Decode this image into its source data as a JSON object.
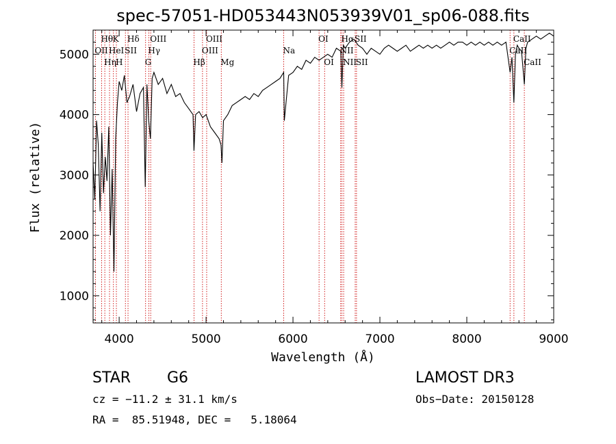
{
  "chart_data": {
    "type": "line",
    "title": "spec-57051-HD053443N053939V01_sp06-088.fits",
    "xlabel": "Wavelength (Å)",
    "ylabel": "Flux (relative)",
    "xlim": [
      3700,
      9000
    ],
    "ylim": [
      550,
      5400
    ],
    "xticks": [
      4000,
      5000,
      6000,
      7000,
      8000,
      9000
    ],
    "yticks": [
      1000,
      2000,
      3000,
      4000,
      5000
    ],
    "grid": false,
    "series": [
      {
        "name": "flux",
        "x": [
          3700,
          3720,
          3740,
          3760,
          3780,
          3800,
          3820,
          3840,
          3860,
          3880,
          3900,
          3920,
          3940,
          3960,
          3980,
          4000,
          4030,
          4060,
          4090,
          4120,
          4160,
          4200,
          4240,
          4280,
          4300,
          4320,
          4340,
          4360,
          4380,
          4400,
          4450,
          4500,
          4550,
          4600,
          4650,
          4700,
          4750,
          4800,
          4850,
          4861,
          4880,
          4920,
          4960,
          5000,
          5050,
          5100,
          5150,
          5172,
          5183,
          5200,
          5250,
          5300,
          5350,
          5400,
          5450,
          5500,
          5550,
          5600,
          5650,
          5700,
          5750,
          5800,
          5850,
          5893,
          5900,
          5950,
          6000,
          6050,
          6100,
          6150,
          6200,
          6250,
          6300,
          6350,
          6400,
          6450,
          6500,
          6550,
          6563,
          6580,
          6600,
          6650,
          6700,
          6750,
          6800,
          6850,
          6900,
          6950,
          7000,
          7050,
          7100,
          7150,
          7200,
          7250,
          7300,
          7350,
          7400,
          7450,
          7500,
          7550,
          7600,
          7650,
          7700,
          7750,
          7800,
          7850,
          7900,
          7950,
          8000,
          8050,
          8100,
          8150,
          8200,
          8250,
          8300,
          8350,
          8400,
          8450,
          8498,
          8520,
          8542,
          8560,
          8580,
          8600,
          8630,
          8662,
          8680,
          8700,
          8750,
          8800,
          8850,
          8900,
          8950,
          9000
        ],
        "values": [
          3200,
          2600,
          3900,
          3500,
          2400,
          3700,
          2700,
          3300,
          2900,
          3800,
          2000,
          3100,
          1400,
          3600,
          4200,
          4550,
          4400,
          4650,
          4200,
          4300,
          4500,
          4050,
          4350,
          4450,
          2800,
          4500,
          3900,
          3600,
          4600,
          4700,
          4500,
          4600,
          4350,
          4500,
          4300,
          4350,
          4200,
          4100,
          4000,
          3400,
          4000,
          4050,
          3950,
          4000,
          3800,
          3700,
          3600,
          3500,
          3200,
          3900,
          4000,
          4150,
          4200,
          4250,
          4300,
          4250,
          4350,
          4300,
          4400,
          4450,
          4500,
          4550,
          4600,
          4700,
          3900,
          4650,
          4700,
          4800,
          4750,
          4900,
          4850,
          4950,
          4900,
          4950,
          5000,
          4950,
          5100,
          5050,
          4450,
          5150,
          5100,
          5200,
          5250,
          5150,
          5100,
          5000,
          5100,
          5050,
          5000,
          5100,
          5150,
          5100,
          5050,
          5100,
          5150,
          5050,
          5100,
          5150,
          5100,
          5150,
          5100,
          5150,
          5100,
          5150,
          5200,
          5150,
          5200,
          5200,
          5150,
          5200,
          5150,
          5200,
          5150,
          5200,
          5150,
          5200,
          5150,
          5200,
          4700,
          4950,
          4200,
          5000,
          5150,
          5100,
          5050,
          4500,
          5100,
          5200,
          5250,
          5300,
          5250,
          5300,
          5350,
          5300
        ]
      }
    ],
    "spectral_lines": [
      {
        "name": "OII",
        "wavelength": 3727,
        "row": 1
      },
      {
        "name": "Hθ",
        "wavelength": 3798,
        "row": 0
      },
      {
        "name": "Hη",
        "wavelength": 3835,
        "row": 2
      },
      {
        "name": "HeI",
        "wavelength": 3889,
        "row": 1
      },
      {
        "name": "K",
        "wavelength": 3934,
        "row": 0
      },
      {
        "name": "H",
        "wavelength": 3968,
        "row": 2
      },
      {
        "name": "SII",
        "wavelength": 4072,
        "row": 1
      },
      {
        "name": "Hδ",
        "wavelength": 4102,
        "row": 0
      },
      {
        "name": "G",
        "wavelength": 4304,
        "row": 2
      },
      {
        "name": "Hγ",
        "wavelength": 4341,
        "row": 1
      },
      {
        "name": "OIII",
        "wavelength": 4363,
        "row": 0
      },
      {
        "name": "Hβ",
        "wavelength": 4861,
        "row": 2
      },
      {
        "name": "OIII",
        "wavelength": 4959,
        "row": 1
      },
      {
        "name": "OIII",
        "wavelength": 5007,
        "row": 0
      },
      {
        "name": "Mg",
        "wavelength": 5175,
        "row": 2
      },
      {
        "name": "Na",
        "wavelength": 5893,
        "row": 1
      },
      {
        "name": "OI",
        "wavelength": 6300,
        "row": 0
      },
      {
        "name": "OI",
        "wavelength": 6364,
        "row": 2
      },
      {
        "name": "NII",
        "wavelength": 6548,
        "row": 1
      },
      {
        "name": "Hα",
        "wavelength": 6563,
        "row": 0
      },
      {
        "name": "NII",
        "wavelength": 6583,
        "row": 2
      },
      {
        "name": "SII",
        "wavelength": 6716,
        "row": 0
      },
      {
        "name": "SII",
        "wavelength": 6731,
        "row": 2
      },
      {
        "name": "CaII",
        "wavelength": 8498,
        "row": 1
      },
      {
        "name": "CaII",
        "wavelength": 8542,
        "row": 0
      },
      {
        "name": "CaII",
        "wavelength": 8662,
        "row": 2
      }
    ],
    "line_color": "#cc0000"
  },
  "info": {
    "class": "STAR",
    "subclass": "G6",
    "survey": "LAMOST DR3",
    "cz": "cz = −11.2 ± 31.1 km/s",
    "obs_date": "Obs−Date: 20150128",
    "radec": "RA =  85.51948, DEC =   5.18064"
  }
}
